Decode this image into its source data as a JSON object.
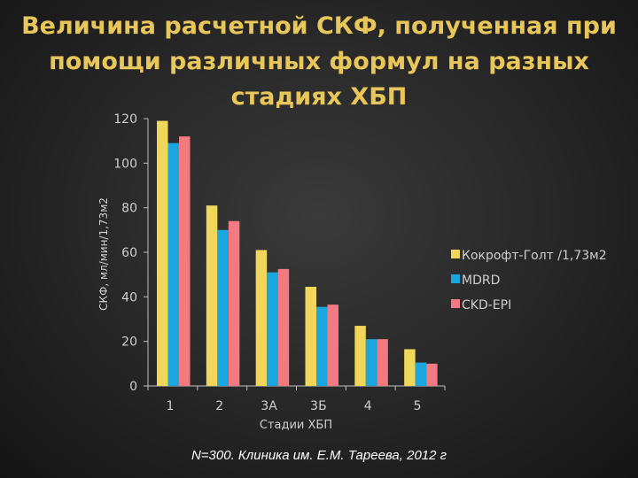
{
  "title_lines": [
    "Величина расчетной СКФ, полученная при",
    "помощи различных формул на разных",
    "стадиях ХБП"
  ],
  "footnote": "N=300. Клиника им. Е.М. Тареева, 2012 г",
  "chart_data": {
    "type": "bar",
    "title": "Величина расчетной СКФ, полученная при помощи различных формул на разных стадиях ХБП",
    "xlabel": "Стадии ХБП",
    "ylabel": "СКФ, мл/мин/1,73м2",
    "categories": [
      "1",
      "2",
      "3А",
      "3Б",
      "4",
      "5"
    ],
    "ylim": [
      0,
      120
    ],
    "yticks": [
      "0",
      "20",
      "40",
      "60",
      "80",
      "100",
      "120"
    ],
    "grid": false,
    "legend_position": "right",
    "series": [
      {
        "name": "Кокрофт-Голт /1,73м2",
        "color": "#f0d75a",
        "values": [
          119,
          81,
          61,
          44.5,
          27,
          16.5
        ]
      },
      {
        "name": "MDRD",
        "color": "#1aa7e0",
        "values": [
          109,
          70,
          51,
          35.5,
          21,
          10.5
        ]
      },
      {
        "name": "CKD-EPI",
        "color": "#f27a80",
        "values": [
          112,
          74,
          52.5,
          36.5,
          21,
          10
        ]
      }
    ]
  }
}
